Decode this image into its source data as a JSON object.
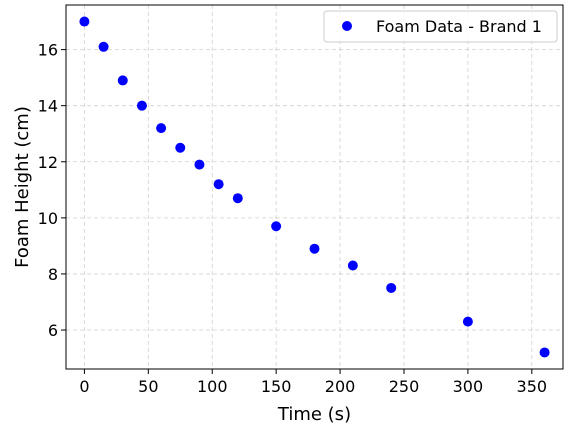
{
  "chart_data": {
    "type": "scatter",
    "xlabel": "Time (s)",
    "ylabel": "Foam Height (cm)",
    "xlim": [
      -14.4,
      374.4
    ],
    "ylim": [
      4.61,
      17.59
    ],
    "xticks": [
      0,
      50,
      100,
      150,
      200,
      250,
      300,
      350
    ],
    "yticks": [
      6,
      8,
      10,
      12,
      14,
      16
    ],
    "grid": true,
    "legend_position": "top-right",
    "series": [
      {
        "name": "Foam Data - Brand 1",
        "color": "#0000ff",
        "x": [
          0,
          15,
          30,
          45,
          60,
          75,
          90,
          105,
          120,
          150,
          180,
          210,
          240,
          300,
          360
        ],
        "y": [
          17.0,
          16.1,
          14.9,
          14.0,
          13.2,
          12.5,
          11.9,
          11.2,
          10.7,
          9.7,
          8.9,
          8.3,
          7.5,
          6.3,
          5.2
        ]
      }
    ]
  }
}
